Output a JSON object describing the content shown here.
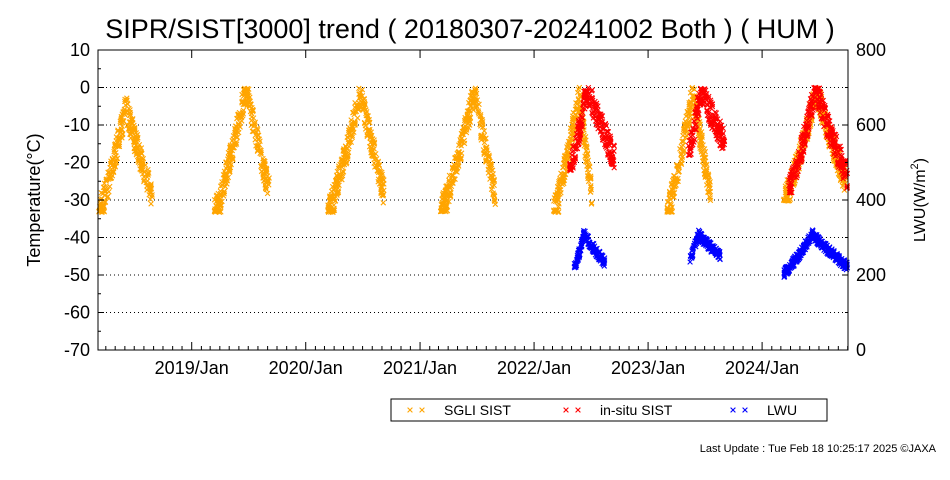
{
  "chart_data": {
    "type": "scatter",
    "title": "SIPR/SIST[3000] trend ( 20180307-20241002 Both ) ( HUM )",
    "ylabel": "Temperature(°C)",
    "y2label_main": "LWU(W/m",
    "y2label_sup": "2",
    "y2label_end": ")",
    "ylim": [
      -70,
      10
    ],
    "y2lim": [
      0,
      800
    ],
    "xlim": [
      "2018-03-07",
      "2024-10-02"
    ],
    "y_ticks": [
      "10",
      "0",
      "-10",
      "-20",
      "-30",
      "-40",
      "-50",
      "-60",
      "-70"
    ],
    "y2_ticks": [
      "800",
      "600",
      "400",
      "200",
      "0"
    ],
    "x_ticks": [
      {
        "date": "2019-01-01",
        "label": "2019/Jan"
      },
      {
        "date": "2020-01-01",
        "label": "2020/Jan"
      },
      {
        "date": "2021-01-01",
        "label": "2021/Jan"
      },
      {
        "date": "2022-01-01",
        "label": "2022/Jan"
      },
      {
        "date": "2023-01-01",
        "label": "2023/Jan"
      },
      {
        "date": "2024-01-01",
        "label": "2024/Jan"
      }
    ],
    "grid": "horizontal dotted",
    "legend_position": "bottom",
    "series": [
      {
        "name": "SGLI SIST",
        "color": "#FFA500",
        "marker": "x",
        "axis": "left",
        "seasons": [
          {
            "start": "2018-03-10",
            "peak": "2018-06-05",
            "end": "2018-08-28",
            "base": -33,
            "peak_value": -5
          },
          {
            "start": "2019-03-15",
            "peak": "2019-06-25",
            "end": "2019-09-08",
            "base": -33,
            "peak_value": 0
          },
          {
            "start": "2020-03-12",
            "peak": "2020-06-25",
            "end": "2020-09-08",
            "base": -33,
            "peak_value": -1
          },
          {
            "start": "2021-03-08",
            "peak": "2021-06-25",
            "end": "2021-08-30",
            "base": -33,
            "peak_value": -1
          },
          {
            "start": "2022-03-05",
            "peak": "2022-05-25",
            "end": "2022-07-05",
            "base": -33,
            "peak_value": -2
          },
          {
            "start": "2023-03-03",
            "peak": "2023-05-25",
            "end": "2023-07-20",
            "base": -33,
            "peak_value": -1
          },
          {
            "start": "2024-03-10",
            "peak": "2024-06-25",
            "end": "2024-09-25",
            "base": -30,
            "peak_value": -1
          }
        ]
      },
      {
        "name": "in-situ SIST",
        "color": "#FF0000",
        "marker": "x",
        "axis": "left",
        "seasons": [
          {
            "start": "2022-04-25",
            "peak": "2022-06-20",
            "end": "2022-09-15",
            "base": -22,
            "peak_value": 0
          },
          {
            "start": "2023-05-10",
            "peak": "2023-06-20",
            "end": "2023-09-05",
            "base": -18,
            "peak_value": 0
          },
          {
            "start": "2024-03-25",
            "peak": "2024-06-20",
            "end": "2024-09-30",
            "base": -28,
            "peak_value": 0
          }
        ]
      },
      {
        "name": "LWU",
        "color": "#0000FF",
        "marker": "x",
        "axis": "right",
        "seasons": [
          {
            "start": "2022-05-10",
            "peak": "2022-06-10",
            "end": "2022-08-15",
            "base": 220,
            "peak_value": 310
          },
          {
            "start": "2023-05-15",
            "peak": "2023-06-10",
            "end": "2023-08-20",
            "base": 240,
            "peak_value": 310
          },
          {
            "start": "2024-03-10",
            "peak": "2024-06-10",
            "end": "2024-10-01",
            "base": 205,
            "peak_value": 310
          }
        ]
      }
    ]
  },
  "footer": {
    "last_update": "Last Update : Tue Feb 18 10:25:17 2025  ©JAXA"
  }
}
